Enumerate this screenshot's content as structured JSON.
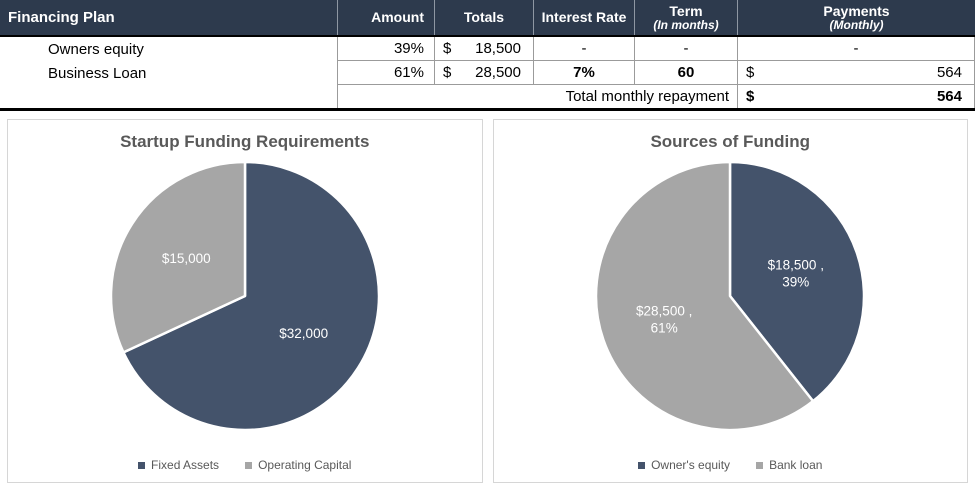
{
  "table": {
    "title": "Financing Plan",
    "headers": {
      "amount": "Amount",
      "totals": "Totals",
      "interest_rate": "Interest Rate",
      "term": "Term",
      "term_sub": "(In months)",
      "payments": "Payments",
      "payments_sub": "(Monthly)"
    },
    "rows": [
      {
        "label": "Owners equity",
        "amount": "39%",
        "currency": "$",
        "total": "18,500",
        "interest_rate": "-",
        "term": "-",
        "payment": "-"
      },
      {
        "label": "Business Loan",
        "amount": "61%",
        "currency": "$",
        "total": "28,500",
        "interest_rate": "7%",
        "term": "60",
        "payment_currency": "$",
        "payment": "564"
      }
    ],
    "footer": {
      "label": "Total monthly repayment",
      "currency": "$",
      "value": "564"
    }
  },
  "colors": {
    "header_bg": "#2d3a4d",
    "pie_blue": "#44536b",
    "pie_gray": "#a6a6a6",
    "chart_text": "#595959"
  },
  "chart_data": [
    {
      "type": "pie",
      "title": "Startup Funding Requirements",
      "labels": [
        "Fixed Assets",
        "Operating Capital"
      ],
      "values": [
        32000,
        15000
      ],
      "data_labels": [
        [
          "$32,000"
        ],
        [
          "$15,000"
        ]
      ],
      "colors": [
        "#44536b",
        "#a6a6a6"
      ],
      "legend_position": "bottom",
      "start_angle": "top-clockwise"
    },
    {
      "type": "pie",
      "title": "Sources of Funding",
      "labels": [
        "Owner's equity",
        "Bank loan"
      ],
      "values": [
        18500,
        28500
      ],
      "data_labels": [
        [
          "$18,500 ,",
          "39%"
        ],
        [
          "$28,500 ,",
          "61%"
        ]
      ],
      "colors": [
        "#44536b",
        "#a6a6a6"
      ],
      "legend_position": "bottom",
      "start_angle": "top-clockwise"
    }
  ]
}
